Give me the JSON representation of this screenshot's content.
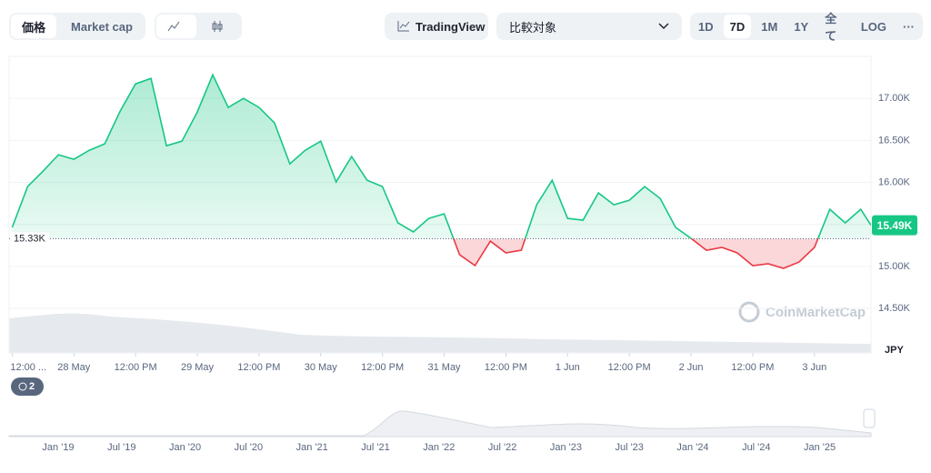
{
  "toolbar": {
    "price": "価格",
    "market_cap": "Market cap",
    "tradingview": "TradingView",
    "compare": "比較対象",
    "ranges": [
      "1D",
      "7D",
      "1M",
      "1Y",
      "全て"
    ],
    "log": "LOG",
    "more": "···"
  },
  "chart_data": {
    "type": "line",
    "currency": "JPY",
    "watermark": "CoinMarketCap",
    "badge": "2",
    "x": [
      -12,
      -9,
      -6,
      -3,
      0,
      3,
      6,
      9,
      12,
      15,
      18,
      21,
      24,
      27,
      30,
      33,
      36,
      39,
      42,
      45,
      48,
      51,
      54,
      57,
      60,
      63,
      66,
      69,
      72,
      75,
      78,
      81,
      84,
      87,
      90,
      93,
      96,
      99,
      102,
      105,
      108,
      111,
      114,
      117,
      120,
      123,
      126,
      129,
      132,
      135,
      138,
      141,
      144,
      147,
      150,
      153,
      155
    ],
    "series": [
      {
        "color": "#16c784",
        "values": [
          15464,
          15950,
          16134,
          16329,
          16275,
          16383,
          16459,
          16849,
          17173,
          17238,
          16437,
          16491,
          16838,
          17281,
          16892,
          17000,
          16892,
          16708,
          16221,
          16383,
          16491,
          16005,
          16308,
          16026,
          15950,
          15518,
          15410,
          15572,
          15626,
          15139,
          15009,
          15301,
          15161,
          15193,
          15734,
          16026,
          15572,
          15550,
          15875,
          15734,
          15788,
          15950,
          15810,
          15464,
          15334,
          15193,
          15226,
          15161,
          15009,
          15031,
          14977,
          15052,
          15226,
          15680,
          15518,
          15680,
          15490
        ]
      }
    ],
    "below_color": "#ea3943",
    "xlim": [
      -12.6,
      155
    ],
    "xticks": [
      {
        "value": -12,
        "label": "12:00 ..."
      },
      {
        "value": 0,
        "label": "28 May"
      },
      {
        "value": 12,
        "label": "12:00 PM"
      },
      {
        "value": 24,
        "label": "29 May"
      },
      {
        "value": 36,
        "label": "12:00 PM"
      },
      {
        "value": 48,
        "label": "30 May"
      },
      {
        "value": 60,
        "label": "12:00 PM"
      },
      {
        "value": 72,
        "label": "31 May"
      },
      {
        "value": 84,
        "label": "12:00 PM"
      },
      {
        "value": 96,
        "label": "1 Jun"
      },
      {
        "value": 108,
        "label": "12:00 PM"
      },
      {
        "value": 120,
        "label": "2 Jun"
      },
      {
        "value": 132,
        "label": "12:00 PM"
      },
      {
        "value": 144,
        "label": "3 Jun"
      }
    ],
    "ylim": [
      13970,
      17500
    ],
    "yticks": [
      {
        "value": 14500,
        "label": "14.50K"
      },
      {
        "value": 15000,
        "label": "15.00K"
      },
      {
        "value": 15500,
        "label": "15.50K"
      },
      {
        "value": 16000,
        "label": "16.00K"
      },
      {
        "value": 16500,
        "label": "16.50K"
      },
      {
        "value": 17000,
        "label": "17.00K"
      }
    ],
    "baseline": {
      "value": 15330,
      "label": "15.33K"
    },
    "current": {
      "value": 15490,
      "label": "15.49K"
    },
    "grid": true
  },
  "navigator": {
    "labels": [
      "Jan '19",
      "Jul '19",
      "Jan '20",
      "Jul '20",
      "Jan '21",
      "Jul '21",
      "Jan '22",
      "Jul '22",
      "Jan '23",
      "Jul '23",
      "Jan '24",
      "Jul '24",
      "Jan '25"
    ]
  }
}
